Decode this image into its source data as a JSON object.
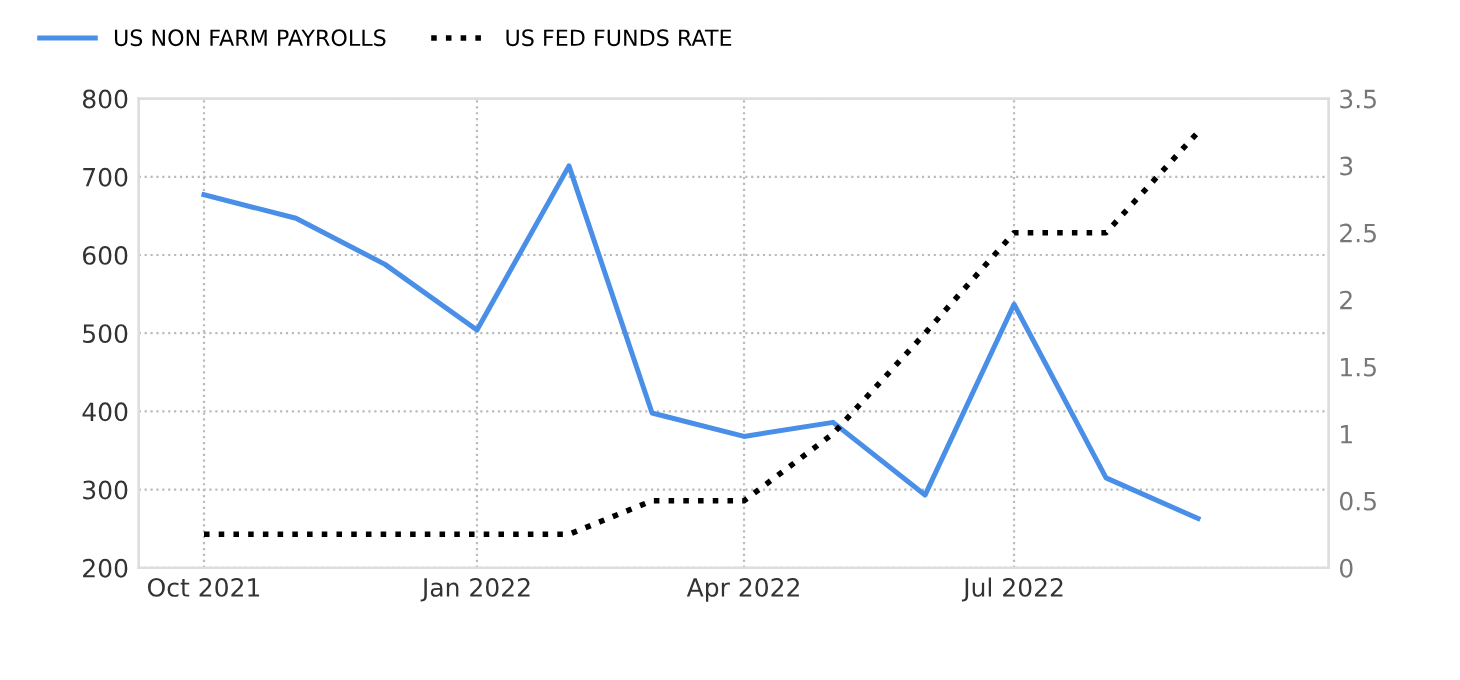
{
  "chart_data": {
    "type": "line",
    "x": [
      "2021-10",
      "2021-11",
      "2021-12",
      "2022-01",
      "2022-02",
      "2022-03",
      "2022-04",
      "2022-05",
      "2022-06",
      "2022-07",
      "2022-08",
      "2022-09"
    ],
    "series": [
      {
        "name": "US NON FARM PAYROLLS",
        "color": "#4a8fe7",
        "line_style": "solid",
        "values": [
          677,
          647,
          588,
          504,
          714,
          398,
          368,
          386,
          293,
          537,
          315,
          263
        ]
      },
      {
        "name": "US FED FUNDS RATE",
        "color": "#000000",
        "line_style": "dotted",
        "axis": "y2",
        "values": [
          0.25,
          0.25,
          0.25,
          0.25,
          0.25,
          0.5,
          0.5,
          1.0,
          1.75,
          2.5,
          2.5,
          3.25
        ]
      }
    ],
    "xlim": [
      "2021-09-09",
      "2022-10-15"
    ],
    "xticks": [
      {
        "value": "2021-10",
        "label": "Oct 2021"
      },
      {
        "value": "2022-01",
        "label": "Jan 2022"
      },
      {
        "value": "2022-04",
        "label": "Apr 2022"
      },
      {
        "value": "2022-07",
        "label": "Jul 2022"
      }
    ],
    "ylim": [
      200,
      800
    ],
    "yticks": [
      200,
      300,
      400,
      500,
      600,
      700,
      800
    ],
    "y2lim": [
      0,
      3.5
    ],
    "y2ticks": [
      0,
      0.5,
      1,
      1.5,
      2,
      2.5,
      3,
      3.5
    ],
    "grid": true,
    "legend": "top left"
  }
}
